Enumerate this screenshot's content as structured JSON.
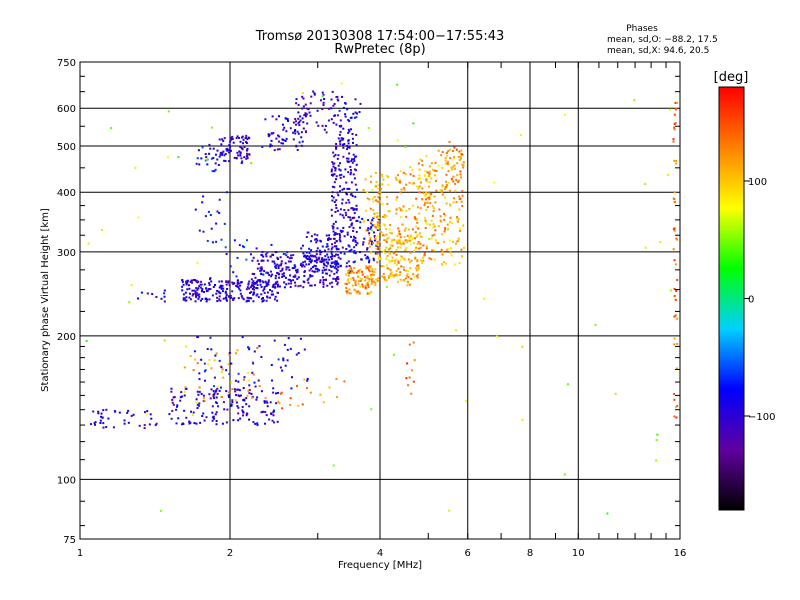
{
  "chart_data": {
    "type": "scatter",
    "title": "Tromsø 20130308 17:54:00−17:55:43",
    "subtitle": "RwPretec (8p)",
    "stats": {
      "heading": "Phases",
      "line1": "mean, sd,O: −88.2, 17.5",
      "line2": "mean, sd,X:  94.6, 20.5"
    },
    "xlabel": "Frequency [MHz]",
    "ylabel": "Stationary phase Virtual Height [km]",
    "x_scale": "log",
    "y_scale": "log",
    "xlim": [
      1,
      16
    ],
    "ylim": [
      75,
      750
    ],
    "grid": true,
    "x_ticks": [
      {
        "value": 1,
        "label": "1"
      },
      {
        "value": 2,
        "label": "2"
      },
      {
        "value": 4,
        "label": "4"
      },
      {
        "value": 6,
        "label": "6"
      },
      {
        "value": 8,
        "label": "8"
      },
      {
        "value": 10,
        "label": "10"
      },
      {
        "value": 16,
        "label": "16"
      }
    ],
    "y_ticks": [
      {
        "value": 75,
        "label": "75"
      },
      {
        "value": 100,
        "label": "100"
      },
      {
        "value": 200,
        "label": "200"
      },
      {
        "value": 300,
        "label": "300"
      },
      {
        "value": 400,
        "label": "400"
      },
      {
        "value": 500,
        "label": "500"
      },
      {
        "value": 600,
        "label": "600"
      },
      {
        "value": 750,
        "label": "750"
      }
    ],
    "colorbar": {
      "label": "[deg]",
      "range": [
        -180,
        180
      ],
      "ticks": [
        {
          "value": 100,
          "label": "100"
        },
        {
          "value": 0,
          "label": "0"
        },
        {
          "value": -100,
          "label": "−100"
        }
      ],
      "colors": [
        "#000000",
        "#6000a0",
        "#0000ff",
        "#00d0ff",
        "#00ff00",
        "#ffff00",
        "#ff8000",
        "#ff0000"
      ]
    },
    "clusters": [
      {
        "x": [
          1.03,
          1.45
        ],
        "y": [
          128,
          140
        ],
        "phase": -105,
        "count": 40
      },
      {
        "x": [
          1.5,
          2.5
        ],
        "y": [
          130,
          155
        ],
        "phase": -100,
        "count": 150
      },
      {
        "x": [
          1.6,
          2.3
        ],
        "y": [
          145,
          190
        ],
        "phase": 110,
        "count": 45
      },
      {
        "x": [
          1.7,
          2.9
        ],
        "y": [
          150,
          200
        ],
        "phase": -90,
        "count": 70
      },
      {
        "x": [
          2.3,
          3.4
        ],
        "y": [
          140,
          165
        ],
        "phase": 130,
        "count": 20
      },
      {
        "x": [
          1.3,
          1.5
        ],
        "y": [
          235,
          250
        ],
        "phase": -95,
        "count": 10
      },
      {
        "x": [
          1.6,
          2.5
        ],
        "y": [
          236,
          262
        ],
        "phase": -100,
        "count": 230
      },
      {
        "x": [
          2.2,
          3.3
        ],
        "y": [
          252,
          300
        ],
        "phase": -100,
        "count": 230
      },
      {
        "x": [
          2.8,
          3.5
        ],
        "y": [
          270,
          330
        ],
        "phase": -95,
        "count": 110
      },
      {
        "x": [
          1.8,
          3.0
        ],
        "y": [
          262,
          320
        ],
        "phase": -75,
        "count": 40
      },
      {
        "x": [
          3.2,
          3.6
        ],
        "y": [
          300,
          550
        ],
        "phase": -100,
        "count": 190
      },
      {
        "x": [
          3.5,
          4.0
        ],
        "y": [
          285,
          355
        ],
        "phase": -95,
        "count": 60
      },
      {
        "x": [
          3.4,
          3.9
        ],
        "y": [
          245,
          280
        ],
        "phase": 120,
        "count": 90
      },
      {
        "x": [
          3.8,
          4.8
        ],
        "y": [
          255,
          330
        ],
        "phase": 110,
        "count": 180
      },
      {
        "x": [
          3.7,
          4.2
        ],
        "y": [
          320,
          440
        ],
        "phase": 105,
        "count": 80
      },
      {
        "x": [
          4.3,
          5.2
        ],
        "y": [
          300,
          460
        ],
        "phase": 115,
        "count": 120
      },
      {
        "x": [
          4.8,
          5.9
        ],
        "y": [
          280,
          490
        ],
        "phase": 110,
        "count": 160
      },
      {
        "x": [
          5.4,
          5.9
        ],
        "y": [
          380,
          510
        ],
        "phase": 130,
        "count": 40
      },
      {
        "x": [
          1.7,
          1.9
        ],
        "y": [
          440,
          510
        ],
        "phase": -80,
        "count": 25
      },
      {
        "x": [
          1.9,
          2.2
        ],
        "y": [
          460,
          525
        ],
        "phase": -100,
        "count": 80
      },
      {
        "x": [
          2.3,
          2.8
        ],
        "y": [
          490,
          580
        ],
        "phase": -100,
        "count": 60
      },
      {
        "x": [
          2.7,
          3.4
        ],
        "y": [
          530,
          660
        ],
        "phase": -105,
        "count": 70
      },
      {
        "x": [
          3.2,
          3.7
        ],
        "y": [
          560,
          640
        ],
        "phase": -95,
        "count": 20
      },
      {
        "x": [
          1.7,
          2.0
        ],
        "y": [
          330,
          410
        ],
        "phase": -95,
        "count": 15
      },
      {
        "x": [
          4.5,
          4.7
        ],
        "y": [
          150,
          200
        ],
        "phase": 140,
        "count": 10
      },
      {
        "x": [
          15.5,
          15.8
        ],
        "y": [
          130,
          620
        ],
        "phase": 140,
        "count": 45
      },
      {
        "x": [
          1.0,
          16.0
        ],
        "y": [
          80,
          700
        ],
        "phase": 60,
        "count": 60
      }
    ]
  }
}
